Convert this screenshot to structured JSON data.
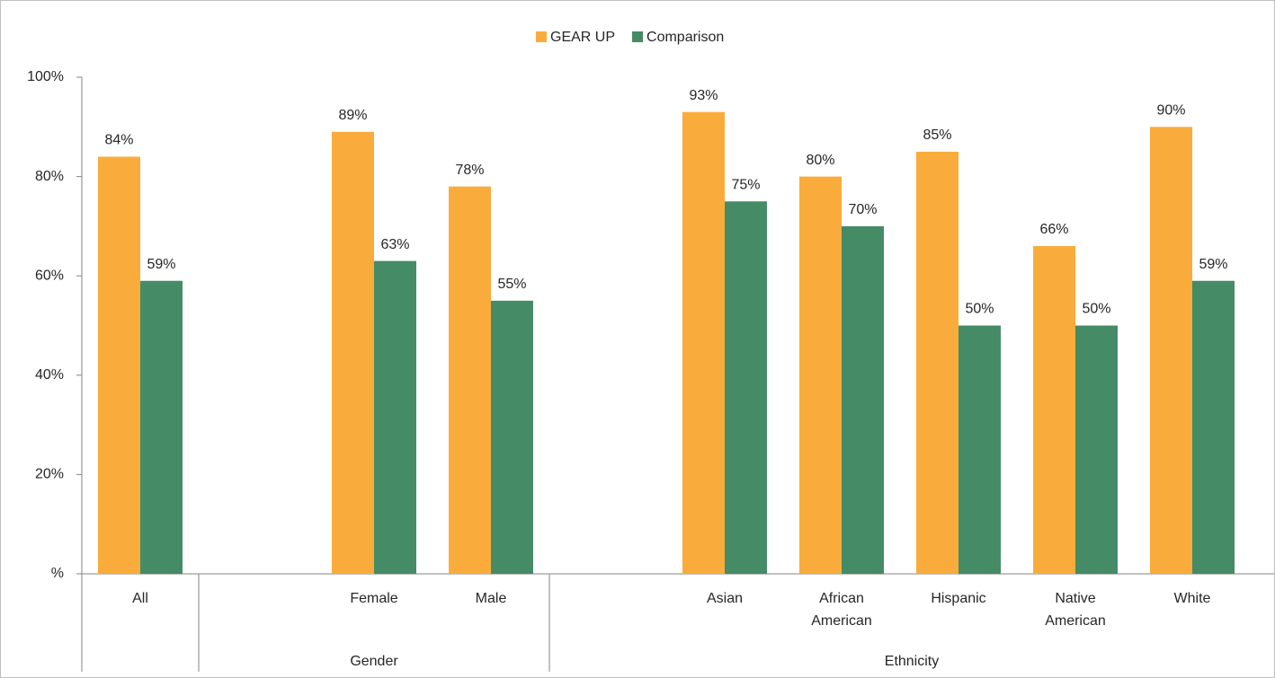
{
  "chart_data": {
    "type": "bar",
    "categories": [
      "All",
      null,
      "Female",
      "Male",
      null,
      "Asian",
      "African American",
      "Hispanic",
      "Native American",
      "White"
    ],
    "category_groups": [
      null,
      "Gender",
      "Gender",
      "Gender",
      "Ethnicity",
      "Ethnicity",
      "Ethnicity",
      "Ethnicity",
      "Ethnicity",
      "Ethnicity"
    ],
    "series": [
      {
        "name": "GEAR UP",
        "color": "#f9ac3b",
        "values": [
          84,
          null,
          89,
          78,
          null,
          93,
          80,
          85,
          66,
          90
        ],
        "value_labels": [
          "84%",
          null,
          "89%",
          "78%",
          null,
          "93%",
          "80%",
          "85%",
          "66%",
          "90%"
        ]
      },
      {
        "name": "Comparison",
        "color": "#458b66",
        "values": [
          59,
          null,
          63,
          55,
          null,
          75,
          70,
          50,
          50,
          59
        ],
        "value_labels": [
          "59%",
          null,
          "63%",
          "55%",
          null,
          "75%",
          "70%",
          "50%",
          "50%",
          "59%"
        ]
      }
    ],
    "ylim": [
      0,
      100
    ],
    "yticks": [
      {
        "value": 0,
        "label": "%"
      },
      {
        "value": 20,
        "label": "20%"
      },
      {
        "value": 40,
        "label": "40%"
      },
      {
        "value": 60,
        "label": "60%"
      },
      {
        "value": 80,
        "label": "80%"
      },
      {
        "value": 100,
        "label": "100%"
      }
    ],
    "legend": "top"
  }
}
